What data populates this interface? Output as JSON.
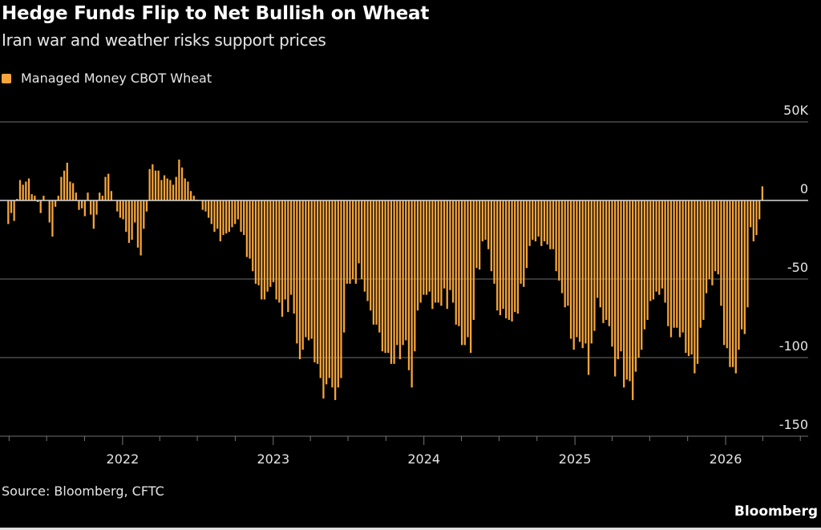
{
  "chart_data": {
    "type": "bar",
    "title": "Hedge Funds Flip to Net Bullish on Wheat",
    "subtitle": "Iran war and weather risks support prices",
    "legend": [
      {
        "name": "Managed Money CBOT Wheat",
        "color": "#f5a53b"
      }
    ],
    "legend_placement": "top-left",
    "source": "Source: Bloomberg, CFTC",
    "brand": "Bloomberg",
    "frequency": "weekly",
    "date_range": [
      "2021-03-30",
      "2026-03-31"
    ],
    "xlim": [
      "2021-03-10",
      "2026-07-20"
    ],
    "x_ticks": [
      "2022",
      "2023",
      "2024",
      "2025",
      "2026"
    ],
    "y_unit": "thousand contracts (net position)",
    "ylim": [
      -150,
      50
    ],
    "y_ticks": [
      50,
      0,
      -50,
      -100,
      -150
    ],
    "y_tick_labels": [
      "50K",
      "0",
      "-50",
      "-100",
      "-150"
    ],
    "y_axis_position": "right",
    "grid": true,
    "values": [
      -15,
      -8,
      -13,
      1,
      13,
      10,
      12,
      14,
      4,
      3,
      -1,
      -8,
      3,
      0,
      -14,
      -23,
      -4,
      3,
      15,
      19,
      24,
      12,
      11,
      5,
      -6,
      -5,
      -10,
      5,
      -9,
      -18,
      -9,
      5,
      3,
      15,
      17,
      6,
      0,
      -7,
      -11,
      -12,
      -20,
      -27,
      -25,
      -14,
      -30,
      -35,
      -18,
      -7,
      20,
      23,
      19,
      19,
      13,
      16,
      14,
      13,
      10,
      15,
      26,
      21,
      14,
      12,
      6,
      3,
      0.5,
      0,
      -6,
      -7,
      -11,
      -15,
      -20,
      -18,
      -26,
      -22,
      -21,
      -20,
      -17,
      -15,
      -12,
      -20,
      -22,
      -36,
      -37,
      -45,
      -53,
      -54,
      -63,
      -63,
      -58,
      -55,
      -52,
      -63,
      -65,
      -74,
      -63,
      -71,
      -60,
      -72,
      -91,
      -101,
      -95,
      -87,
      -89,
      -88,
      -103,
      -104,
      -113,
      -126,
      -117,
      -113,
      -119,
      -127,
      -119,
      -113,
      -84,
      -53,
      -53,
      -50,
      -53,
      -40,
      -50,
      -58,
      -64,
      -70,
      -79,
      -79,
      -84,
      -96,
      -97,
      -97,
      -104,
      -104,
      -92,
      -101,
      -92,
      -89,
      -108,
      -119,
      -96,
      -70,
      -65,
      -60,
      -60,
      -58,
      -69,
      -65,
      -65,
      -67,
      -56,
      -69,
      -57,
      -65,
      -79,
      -80,
      -92,
      -92,
      -87,
      -97,
      -76,
      -43,
      -44,
      -26,
      -25,
      -31,
      -45,
      -53,
      -70,
      -73,
      -69,
      -75,
      -76,
      -77,
      -71,
      -72,
      -53,
      -55,
      -43,
      -29,
      -25,
      -26,
      -23,
      -29,
      -26,
      -28,
      -31,
      -31,
      -45,
      -51,
      -59,
      -68,
      -67,
      -88,
      -95,
      -87,
      -90,
      -94,
      -91,
      -111,
      -91,
      -83,
      -62,
      -68,
      -78,
      -76,
      -80,
      -93,
      -112,
      -101,
      -96,
      -119,
      -114,
      -115,
      -127,
      -109,
      -100,
      -95,
      -82,
      -76,
      -64,
      -63,
      -58,
      -60,
      -56,
      -65,
      -80,
      -87,
      -81,
      -81,
      -87,
      -84,
      -97,
      -99,
      -98,
      -110,
      -104,
      -81,
      -76,
      -59,
      -50,
      -54,
      -45,
      -47,
      -67,
      -92,
      -94,
      -106,
      -106,
      -110,
      -95,
      -82,
      -85,
      -68,
      -17,
      -26,
      -22,
      -12,
      9
    ]
  }
}
